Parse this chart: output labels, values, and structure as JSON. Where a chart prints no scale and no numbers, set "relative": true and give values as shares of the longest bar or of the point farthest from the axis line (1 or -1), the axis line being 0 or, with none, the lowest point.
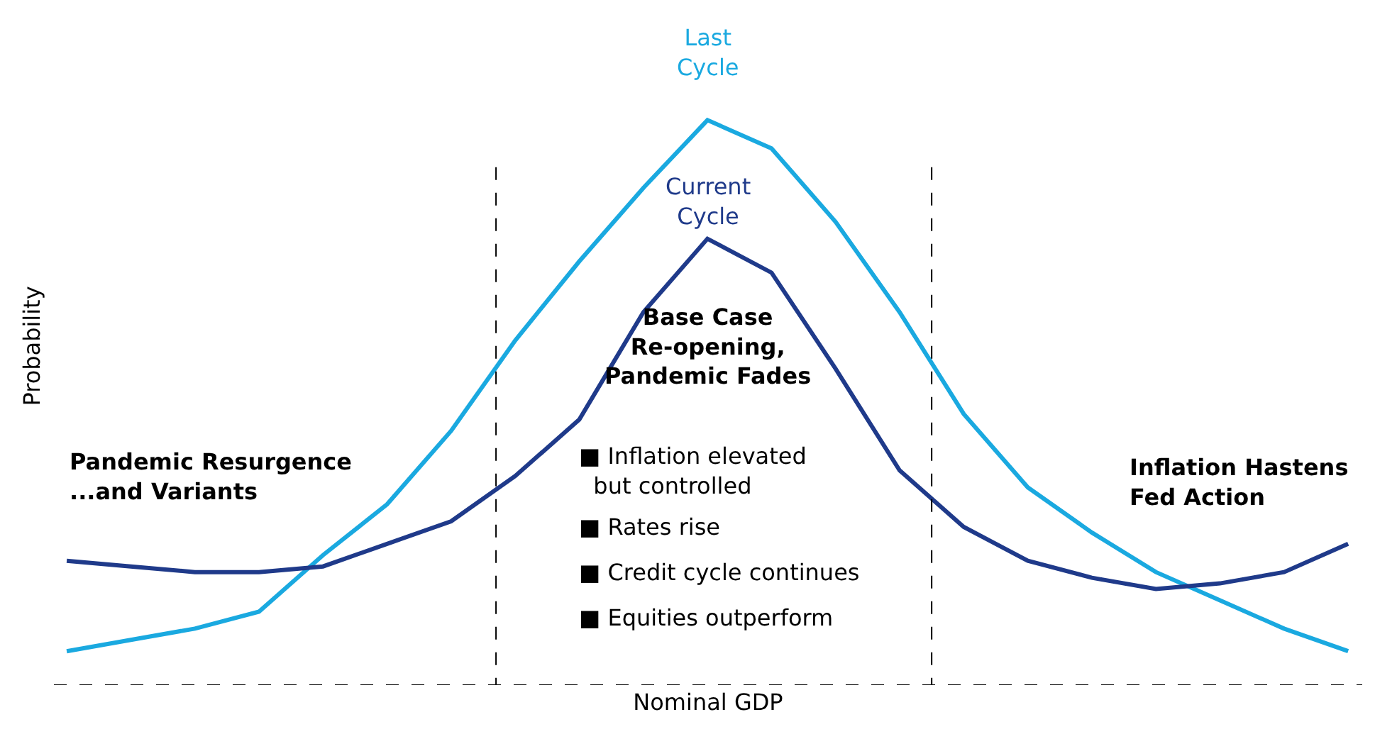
{
  "chart_data": {
    "type": "line",
    "relative": true,
    "xlabel": "Nominal GDP",
    "ylabel": "Probability",
    "categories": [
      null,
      null,
      null,
      null,
      null,
      null,
      null,
      null,
      null,
      null,
      null,
      null,
      null,
      null,
      null,
      null,
      null,
      null,
      null,
      null,
      null
    ],
    "series": [
      {
        "name": "Last Cycle",
        "color": "#1aa9e0",
        "values": [
          0.06,
          0.08,
          0.1,
          0.13,
          0.23,
          0.32,
          0.45,
          0.61,
          0.75,
          0.88,
          1.0,
          0.95,
          0.82,
          0.66,
          0.48,
          0.35,
          0.27,
          0.2,
          0.15,
          0.1,
          0.06
        ]
      },
      {
        "name": "Current Cycle",
        "color": "#1f3a8a",
        "values": [
          0.22,
          0.21,
          0.2,
          0.2,
          0.21,
          0.25,
          0.29,
          0.37,
          0.47,
          0.66,
          0.79,
          0.73,
          0.56,
          0.38,
          0.28,
          0.22,
          0.19,
          0.17,
          0.18,
          0.2,
          0.25
        ]
      }
    ],
    "annotations": [
      "Pandemic Resurgence\n...and Variants",
      "Base Case\nRe-opening,\nPandemic Fades",
      "■ Inflation elevated\n  but controlled",
      "■ Rates rise",
      "■ Credit cycle continues",
      "■ Equities outperform",
      "Inflation Hastens\nFed Action"
    ],
    "legend": false,
    "marker": "none",
    "line_style": "solid"
  }
}
